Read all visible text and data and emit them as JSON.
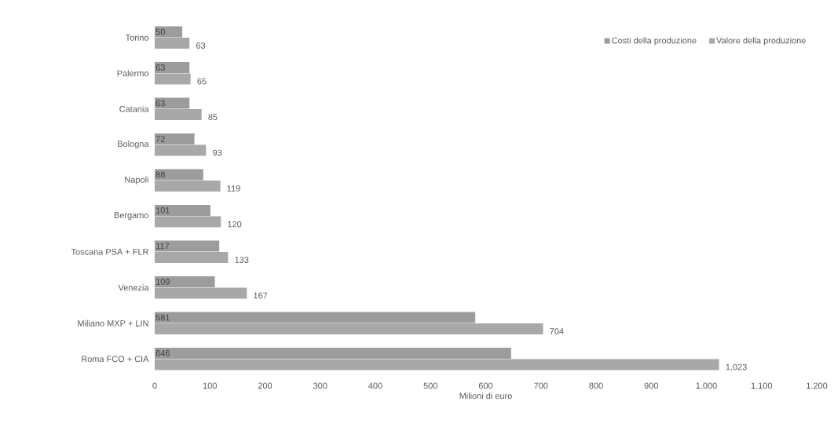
{
  "chart_data": {
    "type": "bar",
    "orientation": "horizontal",
    "xlabel": "Milioni di euro",
    "categories": [
      "Torino",
      "Palermo",
      "Catania",
      "Bologna",
      "Napoli",
      "Bergamo",
      "Toscana PSA + FLR",
      "Venezia",
      "Miliano MXP + LIN",
      "Roma FCO + CIA"
    ],
    "series": [
      {
        "name": "Costi della produzione",
        "color": "#9c9c9c",
        "values": [
          50,
          63,
          63,
          72,
          88,
          101,
          117,
          109,
          581,
          646
        ],
        "value_labels": [
          "50",
          "63",
          "63",
          "72",
          "88",
          "101",
          "117",
          "109",
          "581",
          "646"
        ]
      },
      {
        "name": "Valore della produzione",
        "color": "#a8a8a8",
        "values": [
          63,
          65,
          85,
          93,
          119,
          120,
          133,
          167,
          704,
          1023
        ],
        "value_labels": [
          "63",
          "65",
          "85",
          "93",
          "119",
          "120",
          "133",
          "167",
          "704",
          "1.023"
        ]
      }
    ],
    "xlim": [
      0,
      1200
    ],
    "xticks": [
      0,
      100,
      200,
      300,
      400,
      500,
      600,
      700,
      800,
      900,
      {
        "value": 1000,
        "label": "1.000"
      },
      {
        "value": 1100,
        "label": "1.100"
      },
      {
        "value": 1200,
        "label": "1.200"
      }
    ],
    "legend": "top right"
  }
}
